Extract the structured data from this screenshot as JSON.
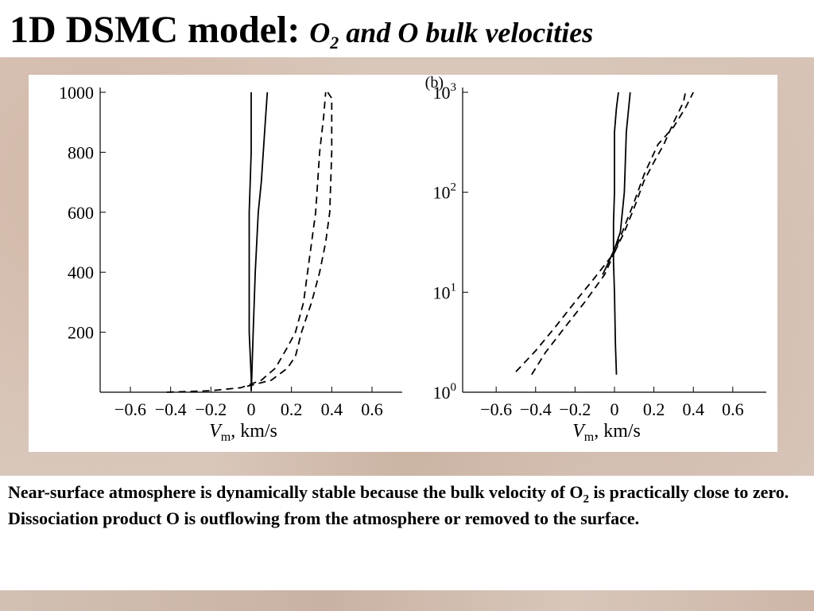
{
  "slide": {
    "title_main": "1D DSMC model:",
    "title_italic_pre": "O",
    "title_italic_sub": "2",
    "title_italic_post": " and O bulk velocities"
  },
  "caption": {
    "p1_pre": "Near-surface atmosphere is dynamically stable because the bulk velocity of O",
    "p1_sub": "2",
    "p1_post": " is practically close to zero.",
    "p2": " Dissociation product O is outflowing from the atmosphere or removed to the surface."
  },
  "chart_data": [
    {
      "type": "line",
      "title": "",
      "panel_label": "",
      "xlabel_main": "V",
      "xlabel_sub": "m",
      "xlabel_unit": ", km/s",
      "ylabel": "",
      "xlim": [
        -0.75,
        0.75
      ],
      "ylim": [
        0,
        1000
      ],
      "yscale": "linear",
      "xticks": [
        -0.6,
        -0.4,
        -0.2,
        0,
        0.2,
        0.4,
        0.6
      ],
      "xtick_labels": [
        "−0.6",
        "−0.4",
        "−0.2",
        "0",
        "0.2",
        "0.4",
        "0.6"
      ],
      "yticks": [
        200,
        400,
        600,
        800,
        1000
      ],
      "ytick_labels": [
        "200",
        "400",
        "600",
        "800",
        "1000"
      ],
      "grid": false,
      "series": [
        {
          "style": "solid",
          "color": "#000000",
          "x": [
            0.0,
            0.0,
            -0.01,
            -0.01,
            -0.01,
            0.0,
            0.0
          ],
          "y": [
            5,
            50,
            200,
            400,
            600,
            800,
            1000
          ]
        },
        {
          "style": "solid",
          "color": "#000000",
          "x": [
            0.0,
            0.002,
            0.005,
            0.01,
            0.02,
            0.035,
            0.05,
            0.06,
            0.07,
            0.08
          ],
          "y": [
            5,
            30,
            100,
            200,
            400,
            600,
            700,
            800,
            900,
            1000
          ]
        },
        {
          "style": "dashed",
          "color": "#000000",
          "x": [
            -0.42,
            -0.2,
            -0.05,
            0.05,
            0.12,
            0.18,
            0.22,
            0.26,
            0.28,
            0.3,
            0.32,
            0.34,
            0.36,
            0.37
          ],
          "y": [
            0,
            5,
            15,
            40,
            80,
            150,
            200,
            300,
            400,
            500,
            600,
            800,
            920,
            1000
          ]
        },
        {
          "style": "dashed",
          "color": "#000000",
          "x": [
            -0.02,
            0.1,
            0.18,
            0.22,
            0.25,
            0.3,
            0.34,
            0.37,
            0.39,
            0.4,
            0.4,
            0.38
          ],
          "y": [
            20,
            40,
            80,
            120,
            200,
            300,
            400,
            500,
            600,
            800,
            980,
            1000
          ]
        }
      ]
    },
    {
      "type": "line",
      "title": "",
      "panel_label": "(b)",
      "xlabel_main": "V",
      "xlabel_sub": "m",
      "xlabel_unit": ", km/s",
      "ylabel": "",
      "xlim": [
        -0.77,
        0.77
      ],
      "ylim": [
        1,
        1000
      ],
      "yscale": "log",
      "xticks": [
        -0.6,
        -0.4,
        -0.2,
        0,
        0.2,
        0.4,
        0.6
      ],
      "xtick_labels": [
        "−0.6",
        "−0.4",
        "−0.2",
        "0",
        "0.2",
        "0.4",
        "0.6"
      ],
      "yticks": [
        1,
        10,
        100,
        1000
      ],
      "ytick_labels": [
        [
          "10",
          "0"
        ],
        [
          "10",
          "1"
        ],
        [
          "10",
          "2"
        ],
        [
          "10",
          "3"
        ]
      ],
      "grid": false,
      "series": [
        {
          "style": "solid",
          "color": "#000000",
          "x": [
            0.01,
            0.005,
            0.0,
            -0.005,
            -0.005,
            0.0,
            0.0,
            0.01,
            0.02
          ],
          "y": [
            1.5,
            3,
            10,
            20,
            50,
            100,
            400,
            700,
            1000
          ]
        },
        {
          "style": "solid",
          "color": "#000000",
          "x": [
            -0.06,
            -0.03,
            0.0,
            0.03,
            0.05,
            0.06,
            0.08
          ],
          "y": [
            15,
            20,
            27,
            40,
            100,
            400,
            1000
          ]
        },
        {
          "style": "dashed",
          "color": "#000000",
          "x": [
            -0.5,
            -0.4,
            -0.3,
            -0.2,
            -0.1,
            0.0,
            0.05,
            0.1,
            0.15,
            0.2,
            0.25,
            0.3,
            0.35,
            0.36
          ],
          "y": [
            1.6,
            2.6,
            4.5,
            8,
            14,
            25,
            40,
            70,
            130,
            200,
            300,
            500,
            800,
            1000
          ]
        },
        {
          "style": "dashed",
          "color": "#000000",
          "x": [
            -0.42,
            -0.35,
            -0.25,
            -0.15,
            -0.05,
            0.0,
            0.05,
            0.1,
            0.15,
            0.22,
            0.3,
            0.36,
            0.4
          ],
          "y": [
            1.5,
            2.5,
            4.5,
            8,
            15,
            25,
            45,
            80,
            150,
            300,
            450,
            700,
            1000
          ]
        }
      ]
    }
  ]
}
